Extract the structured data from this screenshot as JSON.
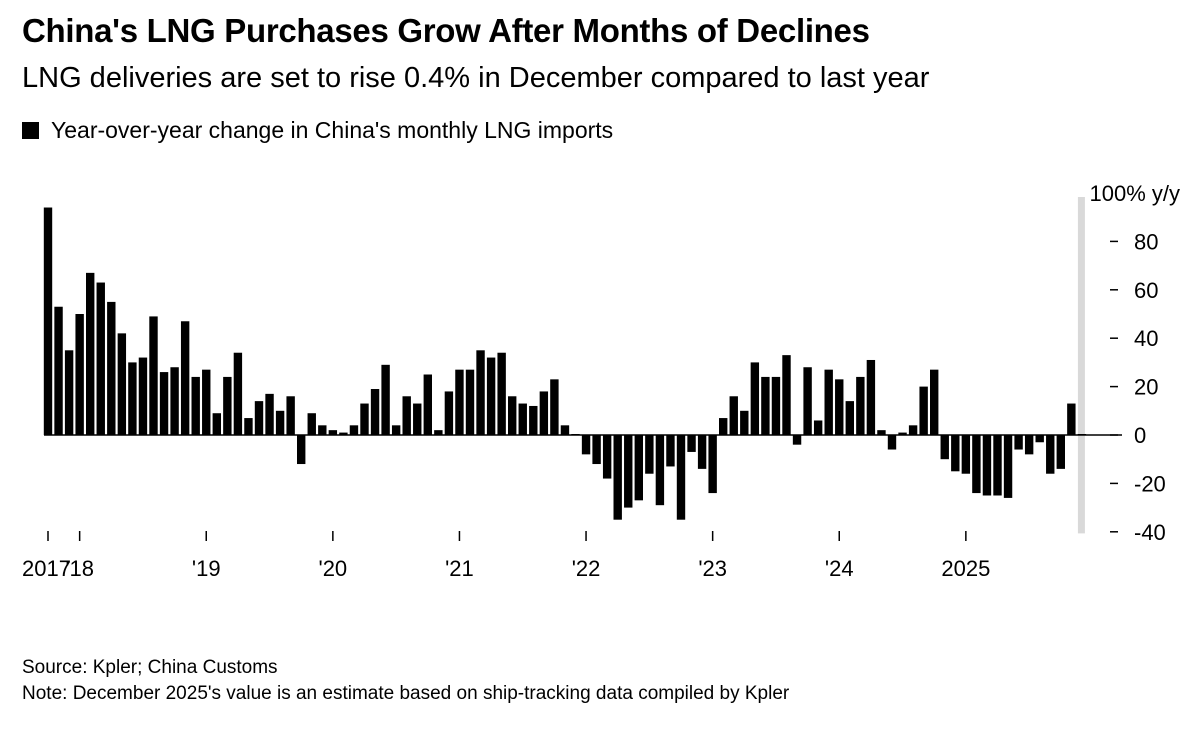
{
  "header": {
    "title": "China's LNG Purchases Grow After Months of Declines",
    "subtitle": "LNG deliveries are set to rise 0.4% in December compared to last year",
    "legend_label": "Year-over-year change in China's monthly LNG imports"
  },
  "footer": {
    "source": "Source: Kpler; China Customs",
    "note": "Note: December 2025's value is an estimate based on ship-tracking data compiled by Kpler"
  },
  "colors": {
    "bar": "#000000",
    "highlight_band": "#d9d9d9",
    "axis": "#000000"
  },
  "chart_data": {
    "type": "bar",
    "title": "China's LNG Purchases Grow After Months of Declines",
    "subtitle": "LNG deliveries are set to rise 0.4% in December compared to last year",
    "xlabel": "",
    "ylabel": "100% y/y",
    "ylim": [
      -40,
      100
    ],
    "yticks": [
      80,
      60,
      40,
      20,
      0,
      -20,
      -40
    ],
    "ytick_labels": [
      "80",
      "60",
      "40",
      "20",
      "0",
      "-20",
      "-40"
    ],
    "y_top_label": "100% y/y",
    "y_axis_side": "right",
    "legend": [
      {
        "name": "Year-over-year change in China's monthly LNG imports",
        "position": "top-left"
      }
    ],
    "x_start": "2017-10",
    "x_end": "2025-12",
    "xticks": [
      {
        "label": "2017",
        "month_index": 0
      },
      {
        "label": "'18",
        "month_index": 3
      },
      {
        "label": "'19",
        "month_index": 15
      },
      {
        "label": "'20",
        "month_index": 27
      },
      {
        "label": "'21",
        "month_index": 39
      },
      {
        "label": "'22",
        "month_index": 51
      },
      {
        "label": "'23",
        "month_index": 63
      },
      {
        "label": "'24",
        "month_index": 75
      },
      {
        "label": "2025",
        "month_index": 87
      }
    ],
    "highlight": {
      "month_index": 98,
      "note": "December 2025 estimate"
    },
    "series": [
      {
        "name": "Year-over-year change in China's monthly LNG imports",
        "values": [
          94,
          53,
          35,
          50,
          67,
          63,
          55,
          42,
          30,
          32,
          49,
          26,
          28,
          47,
          24,
          27,
          9,
          24,
          34,
          7,
          14,
          17,
          10,
          16,
          -12,
          9,
          4,
          2,
          1,
          4,
          13,
          19,
          29,
          4,
          16,
          13,
          25,
          2,
          18,
          27,
          27,
          35,
          32,
          34,
          16,
          13,
          12,
          18,
          23,
          4,
          0,
          -8,
          -12,
          -18,
          -35,
          -30,
          -27,
          -16,
          -29,
          -13,
          -35,
          -7,
          -14,
          -24,
          7,
          16,
          10,
          30,
          24,
          24,
          33,
          -4,
          28,
          6,
          27,
          23,
          14,
          24,
          31,
          2,
          -6,
          1,
          4,
          20,
          27,
          -10,
          -15,
          -16,
          -24,
          -25,
          -25,
          -26,
          -6,
          -8,
          -3,
          -16,
          -14,
          13,
          0.4
        ]
      }
    ]
  }
}
